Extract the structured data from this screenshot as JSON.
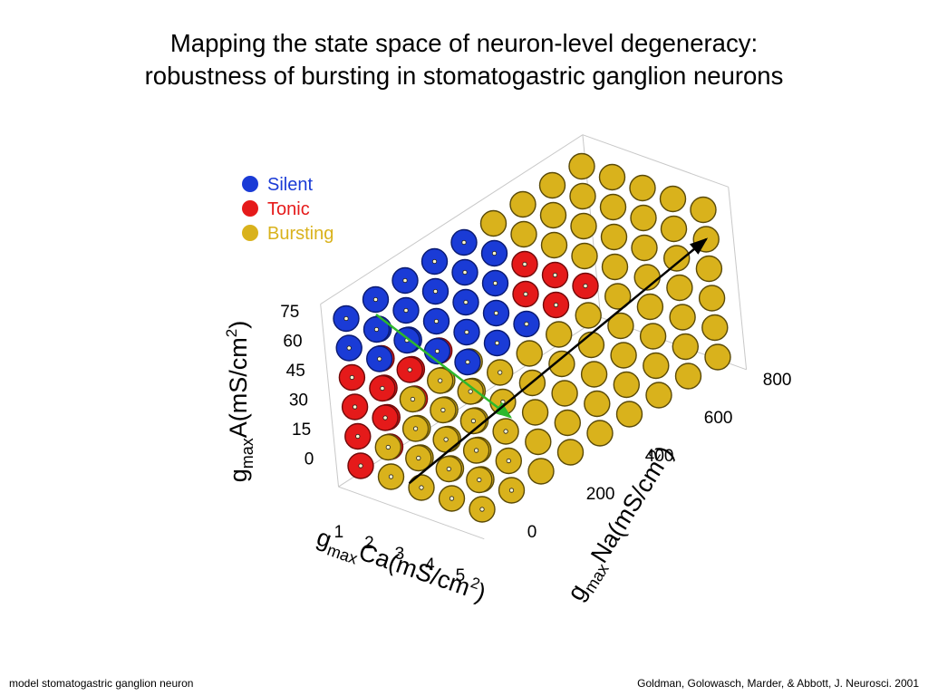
{
  "slide": {
    "title_line1": "Mapping the state space of neuron-level degeneracy:",
    "title_line2": "robustness of bursting in stomatogastric ganglion neurons",
    "footer_left": "model stomatogastric ganglion neuron",
    "footer_right": "Goldman, Golowasch, Marder, & Abbott, J. Neurosci. 2001"
  },
  "chart_data": {
    "type": "scatter3d",
    "title": "",
    "legend": {
      "placement": "top-left",
      "entries": [
        {
          "name": "Silent",
          "color": "#1a3bd6"
        },
        {
          "name": "Tonic",
          "color": "#e51a1a"
        },
        {
          "name": "Bursting",
          "color": "#d9b21c"
        }
      ]
    },
    "axes": {
      "x": {
        "prefix": "g",
        "subscript": "max",
        "label": "Ca(mS/cm",
        "sup": "2",
        "close": ")",
        "ticks": [
          "1",
          "2",
          "3",
          "4",
          "5"
        ],
        "range": [
          1,
          5
        ]
      },
      "y": {
        "prefix": "g",
        "subscript": "max",
        "label": "Na(mS/cm",
        "sup": "2",
        "close": ")",
        "ticks": [
          "0",
          "200",
          "400",
          "600",
          "800"
        ],
        "range": [
          0,
          800
        ]
      },
      "z": {
        "prefix": "g",
        "subscript": "max",
        "label": "A(mS/cm",
        "sup": "2",
        "close": ")",
        "ticks": [
          "0",
          "15",
          "30",
          "45",
          "60",
          "75"
        ],
        "range": [
          0,
          75
        ]
      }
    },
    "grid": {
      "ca": [
        1,
        2,
        3,
        4,
        5
      ],
      "na": [
        0,
        100,
        200,
        300,
        400,
        500,
        600,
        700,
        800
      ],
      "a": [
        0,
        15,
        30,
        45,
        60,
        75
      ]
    },
    "classification_rule": "visible outer surface approximated: top face Silent (with Tonic/Bursting at high Na); front face graded by A and Ca; right face Bursting",
    "arrows": [
      {
        "name": "green-arrow",
        "color": "#2db82d",
        "from": {
          "ca": 1.5,
          "na": 50,
          "a": 75
        },
        "to": {
          "ca": 3.6,
          "na": 250,
          "a": 15
        }
      },
      {
        "name": "black-arrow",
        "color": "#000000",
        "from": {
          "ca": 2.6,
          "na": 0,
          "a": 0
        },
        "to": {
          "ca": 5.0,
          "na": 800,
          "a": 60
        }
      }
    ]
  }
}
